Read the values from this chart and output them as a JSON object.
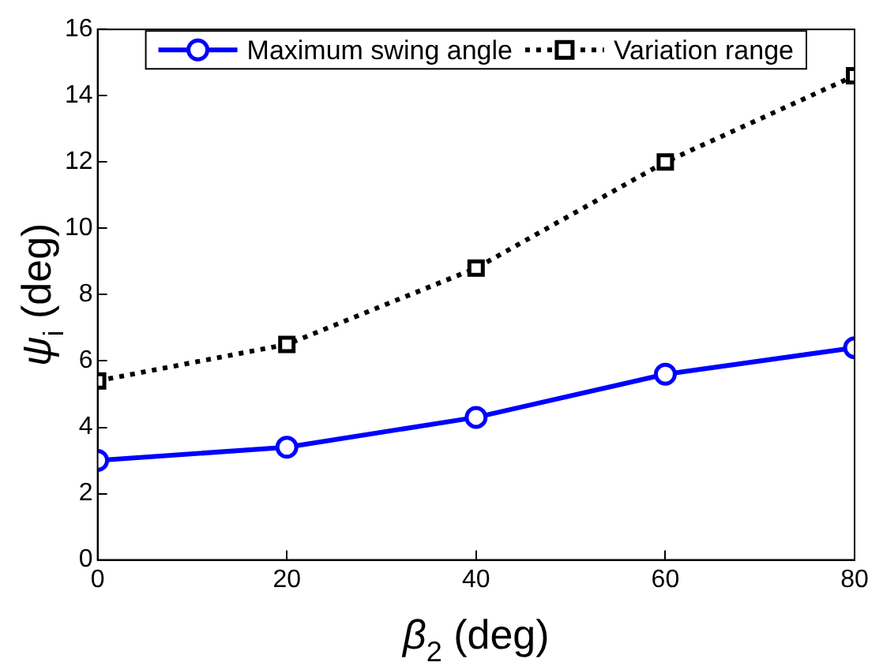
{
  "chart_data": {
    "type": "line",
    "xlabel": "β$_{2}$ (deg)",
    "ylabel": "ψ$_{i}$ (deg)",
    "x": [
      0,
      20,
      40,
      60,
      80
    ],
    "series": [
      {
        "name": "Maximum swing angle",
        "color": "#0000ff",
        "values": [
          3.0,
          3.4,
          4.3,
          5.6,
          6.4
        ],
        "marker": "circle",
        "line_style": "solid"
      },
      {
        "name": "Variation range",
        "color": "#000000",
        "values": [
          5.4,
          6.5,
          8.8,
          12.0,
          14.6
        ],
        "marker": "square",
        "line_style": "dotted"
      }
    ],
    "xlim": [
      0,
      80
    ],
    "xticks": [
      0,
      20,
      40,
      60,
      80
    ],
    "ylim": [
      0,
      16
    ],
    "yticks": [
      0,
      2,
      4,
      6,
      8,
      10,
      12,
      14,
      16
    ],
    "legend": "top",
    "grid": false
  }
}
